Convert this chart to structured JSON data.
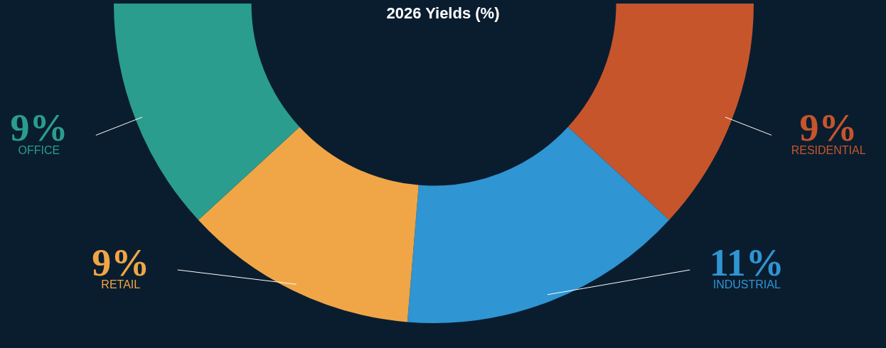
{
  "chart_data": {
    "type": "donut",
    "title": "2026 Yields (%)",
    "categories": [
      "OFFICE",
      "RETAIL",
      "INDUSTRIAL",
      "RESIDENTIAL"
    ],
    "values": [
      9,
      9,
      11,
      9
    ],
    "value_labels": [
      "9%",
      "9%",
      "11%",
      "9%"
    ],
    "colors": [
      "#2a9d8f",
      "#f0a646",
      "#2f95d3",
      "#c6552c"
    ],
    "legend": false
  }
}
